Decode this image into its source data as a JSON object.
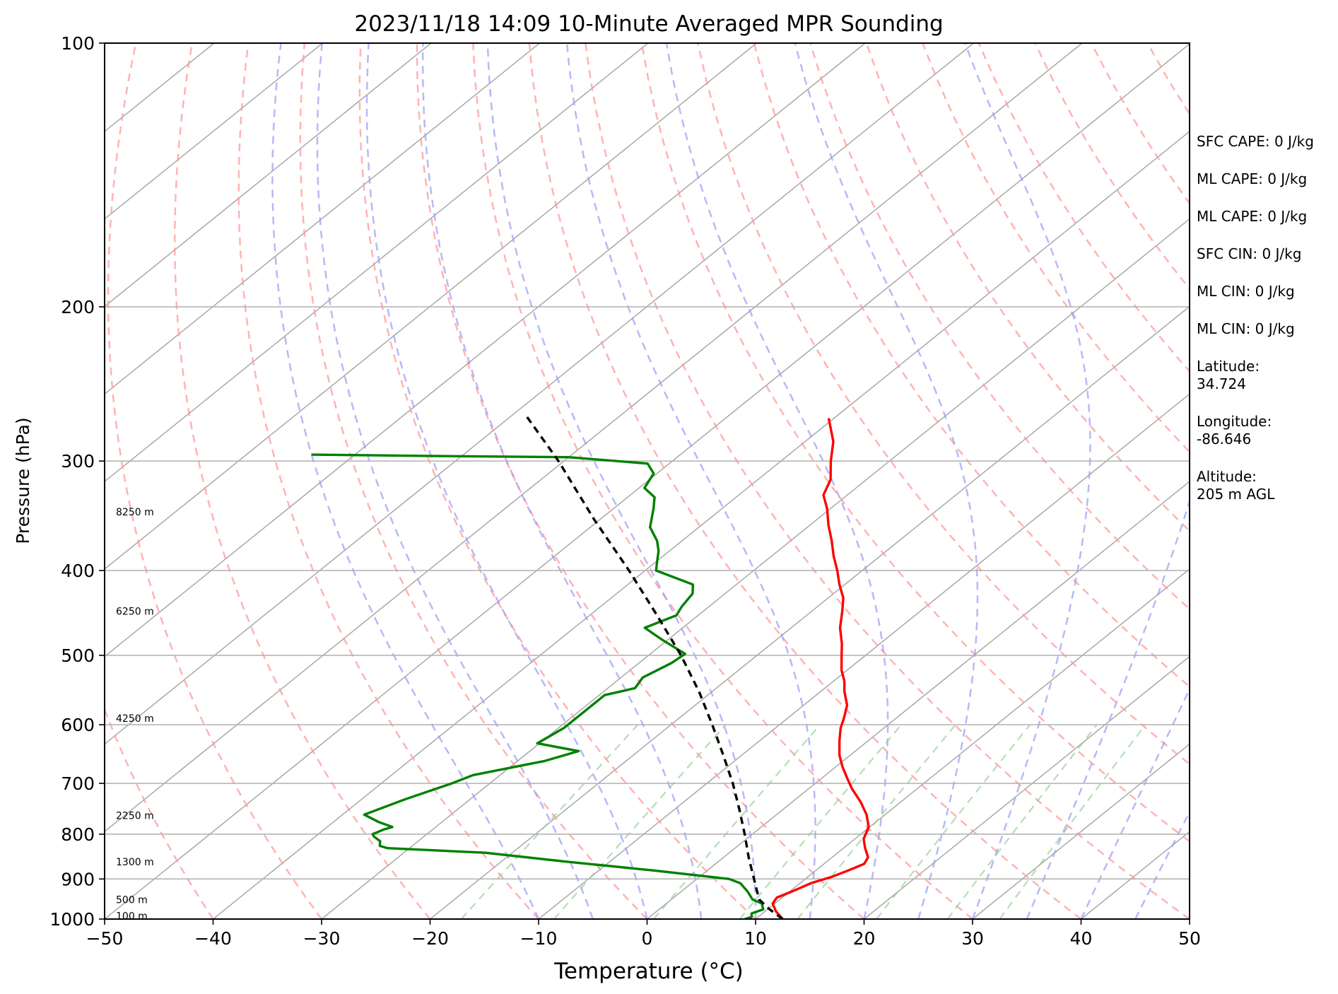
{
  "chart_data": {
    "type": "line",
    "title": "2023/11/18 14:09 10-Minute Averaged MPR Sounding",
    "xlabel": "Temperature (°C)",
    "ylabel": "Pressure (hPa)",
    "xlim": [
      -50,
      50
    ],
    "ylim": [
      1000,
      100
    ],
    "y_scale": "log",
    "x_ticks": [
      -50,
      -40,
      -30,
      -20,
      -10,
      0,
      10,
      20,
      30,
      40,
      50
    ],
    "x_tick_labels": [
      "−50",
      "−40",
      "−30",
      "−20",
      "−10",
      "0",
      "10",
      "20",
      "30",
      "40",
      "50"
    ],
    "y_ticks": [
      1000,
      900,
      800,
      700,
      600,
      500,
      400,
      300,
      200,
      100
    ],
    "y_tick_labels": [
      "1000",
      "900",
      "800",
      "700",
      "600",
      "500",
      "400",
      "300",
      "200",
      "100"
    ],
    "grid": "horizontal",
    "background_lines": [
      "dry adiabats",
      "moist adiabats",
      "mixing ratio lines",
      "skewed isotherms"
    ],
    "series": [
      {
        "kind": "temperature",
        "color": "#ff0000",
        "points": [
          {
            "p": 1000,
            "t": 12.5
          },
          {
            "p": 980,
            "t": 11.0
          },
          {
            "p": 960,
            "t": 9.8
          },
          {
            "p": 945,
            "t": 9.5
          },
          {
            "p": 930,
            "t": 10.2
          },
          {
            "p": 910,
            "t": 11.0
          },
          {
            "p": 895,
            "t": 12.2
          },
          {
            "p": 880,
            "t": 13.0
          },
          {
            "p": 865,
            "t": 13.7
          },
          {
            "p": 850,
            "t": 13.3
          },
          {
            "p": 830,
            "t": 12.0
          },
          {
            "p": 810,
            "t": 10.8
          },
          {
            "p": 785,
            "t": 9.9
          },
          {
            "p": 760,
            "t": 8.3
          },
          {
            "p": 735,
            "t": 6.3
          },
          {
            "p": 710,
            "t": 4.0
          },
          {
            "p": 690,
            "t": 2.3
          },
          {
            "p": 670,
            "t": 0.6
          },
          {
            "p": 650,
            "t": -1.0
          },
          {
            "p": 625,
            "t": -2.7
          },
          {
            "p": 605,
            "t": -4.0
          },
          {
            "p": 590,
            "t": -4.8
          },
          {
            "p": 570,
            "t": -6.0
          },
          {
            "p": 550,
            "t": -7.8
          },
          {
            "p": 535,
            "t": -9.0
          },
          {
            "p": 520,
            "t": -10.5
          },
          {
            "p": 500,
            "t": -12.2
          },
          {
            "p": 485,
            "t": -13.5
          },
          {
            "p": 465,
            "t": -15.5
          },
          {
            "p": 445,
            "t": -17.2
          },
          {
            "p": 430,
            "t": -18.6
          },
          {
            "p": 415,
            "t": -20.5
          },
          {
            "p": 400,
            "t": -22.3
          },
          {
            "p": 385,
            "t": -24.3
          },
          {
            "p": 370,
            "t": -26.2
          },
          {
            "p": 355,
            "t": -28.3
          },
          {
            "p": 340,
            "t": -30.3
          },
          {
            "p": 328,
            "t": -32.2
          },
          {
            "p": 315,
            "t": -33.3
          },
          {
            "p": 300,
            "t": -35.4
          },
          {
            "p": 285,
            "t": -37.4
          },
          {
            "p": 268,
            "t": -40.5
          }
        ]
      },
      {
        "kind": "dewpoint",
        "color": "#008000",
        "points": [
          {
            "p": 1000,
            "t": 9.0
          },
          {
            "p": 995,
            "t": 9.4
          },
          {
            "p": 985,
            "t": 9.0
          },
          {
            "p": 975,
            "t": 9.6
          },
          {
            "p": 960,
            "t": 8.8
          },
          {
            "p": 950,
            "t": 7.5
          },
          {
            "p": 930,
            "t": 6.1
          },
          {
            "p": 910,
            "t": 4.5
          },
          {
            "p": 900,
            "t": 3.0
          },
          {
            "p": 880,
            "t": -5.0
          },
          {
            "p": 860,
            "t": -14.0
          },
          {
            "p": 840,
            "t": -22.5
          },
          {
            "p": 830,
            "t": -32.0
          },
          {
            "p": 825,
            "t": -33.0
          },
          {
            "p": 815,
            "t": -33.5
          },
          {
            "p": 805,
            "t": -34.6
          },
          {
            "p": 800,
            "t": -35.0
          },
          {
            "p": 790,
            "t": -34.5
          },
          {
            "p": 785,
            "t": -34.0
          },
          {
            "p": 775,
            "t": -35.8
          },
          {
            "p": 760,
            "t": -38.0
          },
          {
            "p": 730,
            "t": -36.0
          },
          {
            "p": 700,
            "t": -33.5
          },
          {
            "p": 685,
            "t": -32.5
          },
          {
            "p": 660,
            "t": -27.5
          },
          {
            "p": 643,
            "t": -25.5
          },
          {
            "p": 630,
            "t": -30.2
          },
          {
            "p": 605,
            "t": -29.5
          },
          {
            "p": 580,
            "t": -29.5
          },
          {
            "p": 555,
            "t": -29.5
          },
          {
            "p": 545,
            "t": -27.5
          },
          {
            "p": 530,
            "t": -28.0
          },
          {
            "p": 510,
            "t": -27.0
          },
          {
            "p": 498,
            "t": -26.8
          },
          {
            "p": 480,
            "t": -30.5
          },
          {
            "p": 465,
            "t": -33.5
          },
          {
            "p": 450,
            "t": -32.0
          },
          {
            "p": 440,
            "t": -32.5
          },
          {
            "p": 425,
            "t": -33.0
          },
          {
            "p": 415,
            "t": -34.0
          },
          {
            "p": 400,
            "t": -39.0
          },
          {
            "p": 390,
            "t": -40.0
          },
          {
            "p": 380,
            "t": -41.0
          },
          {
            "p": 370,
            "t": -42.3
          },
          {
            "p": 357,
            "t": -44.5
          },
          {
            "p": 340,
            "t": -46.3
          },
          {
            "p": 330,
            "t": -47.5
          },
          {
            "p": 322,
            "t": -49.5
          },
          {
            "p": 310,
            "t": -50.3
          },
          {
            "p": 302,
            "t": -52.0
          },
          {
            "p": 297,
            "t": -60.0
          },
          {
            "p": 296,
            "t": -73.0
          },
          {
            "p": 295,
            "t": -84.0
          }
        ]
      },
      {
        "kind": "parcel",
        "color": "#000000",
        "points": [
          {
            "p": 1000,
            "t": 12.5
          },
          {
            "p": 975,
            "t": 10.2
          },
          {
            "p": 950,
            "t": 8.1
          },
          {
            "p": 925,
            "t": 6.7
          },
          {
            "p": 850,
            "t": 2.3
          },
          {
            "p": 800,
            "t": -0.7
          },
          {
            "p": 750,
            "t": -4.0
          },
          {
            "p": 700,
            "t": -7.6
          },
          {
            "p": 650,
            "t": -11.7
          },
          {
            "p": 600,
            "t": -16.2
          },
          {
            "p": 550,
            "t": -21.2
          },
          {
            "p": 500,
            "t": -27.0
          },
          {
            "p": 450,
            "t": -33.8
          },
          {
            "p": 400,
            "t": -41.5
          },
          {
            "p": 350,
            "t": -50.5
          },
          {
            "p": 300,
            "t": -60.5
          },
          {
            "p": 265,
            "t": -69.0
          }
        ]
      }
    ],
    "height_labels": [
      {
        "p": 343,
        "text": "8250 m"
      },
      {
        "p": 445,
        "text": "6250 m"
      },
      {
        "p": 590,
        "text": "4250 m"
      },
      {
        "p": 762,
        "text": "2250 m"
      },
      {
        "p": 860,
        "text": "1300 m"
      },
      {
        "p": 950,
        "text": "500 m"
      },
      {
        "p": 992,
        "text": "100 m"
      }
    ],
    "annotations": [
      {
        "label": "SFC CAPE",
        "value": "0 J/kg"
      },
      {
        "label": "ML CAPE",
        "value": "0 J/kg"
      },
      {
        "label": "ML CAPE",
        "value": "0 J/kg"
      },
      {
        "label": "SFC CIN",
        "value": "0 J/kg"
      },
      {
        "label": "ML CIN",
        "value": "0 J/kg"
      },
      {
        "label": "ML CIN",
        "value": "0 J/kg"
      },
      {
        "label": "Latitude:",
        "value": "34.724"
      },
      {
        "label": "Longitude:",
        "value": "-86.646"
      },
      {
        "label": "Altitude:",
        "value": "205 m AGL"
      }
    ]
  },
  "panel": {
    "sfc_cape": "SFC CAPE: 0 J/kg",
    "ml_cape_1": "ML CAPE: 0 J/kg",
    "ml_cape_2": "ML CAPE: 0 J/kg",
    "sfc_cin": "SFC CIN: 0 J/kg",
    "ml_cin_1": "ML CIN: 0 J/kg",
    "ml_cin_2": "ML CIN: 0 J/kg",
    "latitude_label": "Latitude:",
    "latitude_value": "34.724",
    "longitude_label": "Longitude:",
    "longitude_value": "-86.646",
    "altitude_label": "Altitude:",
    "altitude_value": "205 m AGL"
  }
}
